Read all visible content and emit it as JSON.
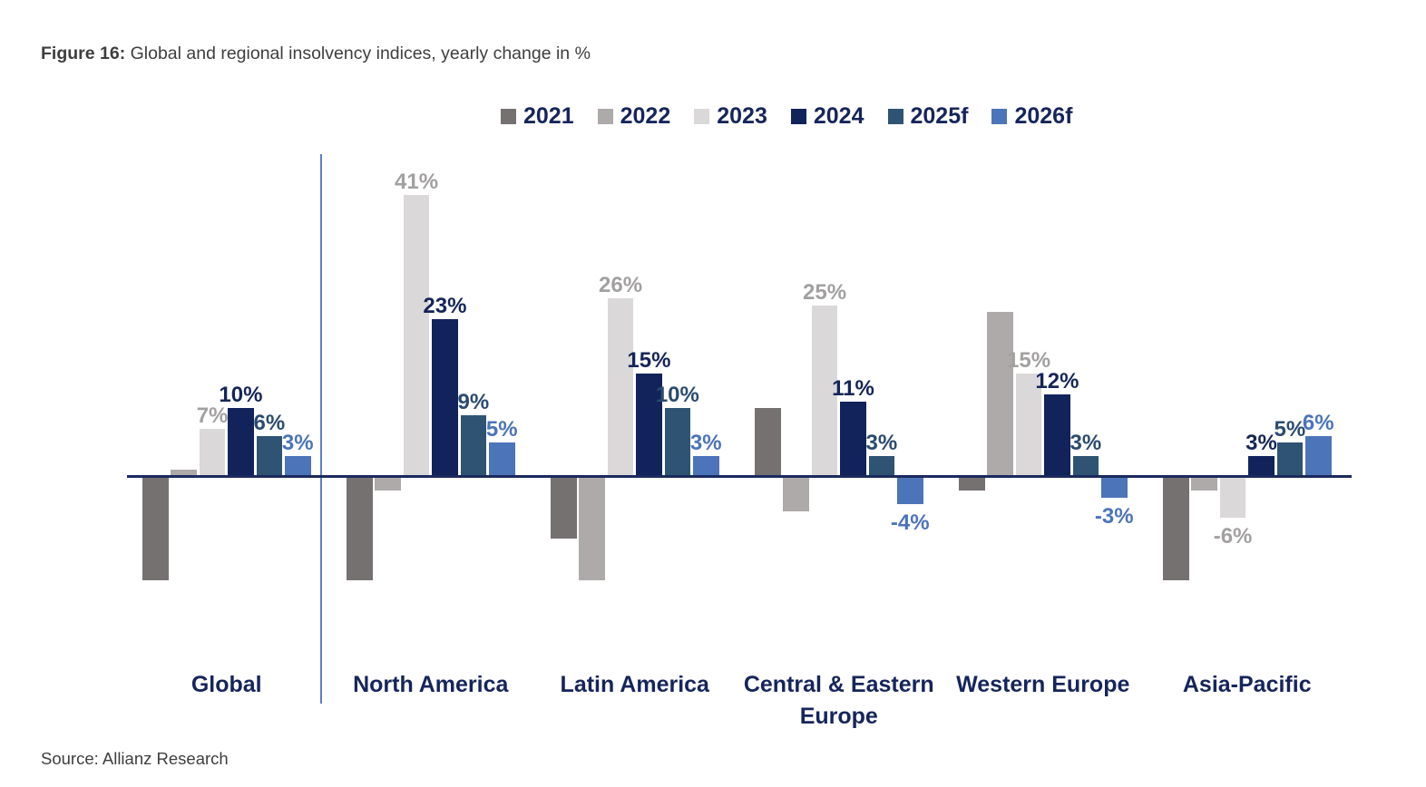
{
  "figure": {
    "label": "Figure 16:",
    "title": "Global and regional insolvency indices, yearly change in %"
  },
  "source": "Source: Allianz Research",
  "colors": {
    "axis_line": "#1B2A5E",
    "separator_line": "#5B7FC7",
    "heading_text": "#16255B",
    "muted_text": "#3E3E3E",
    "gray_label": "#A3A0A0"
  },
  "chart_data": {
    "type": "bar",
    "title": "Global and regional insolvency indices, yearly change in %",
    "unit": "%",
    "grid": false,
    "legend_position": "top",
    "ylim": [
      -20,
      45
    ],
    "categories": [
      "Global",
      "North America",
      "Latin America",
      "Central & Eastern Europe",
      "Western Europe",
      "Asia-Pacific"
    ],
    "series": [
      {
        "name": "2021",
        "color": "#767171",
        "values": [
          -15,
          -15,
          -9,
          10,
          -2,
          -15
        ],
        "labels": [
          "",
          "",
          "",
          "",
          "",
          ""
        ],
        "label_color": "#A3A0A0"
      },
      {
        "name": "2022",
        "color": "#AEAAAA",
        "values": [
          1,
          -2,
          -15,
          -5,
          24,
          -2
        ],
        "labels": [
          "",
          "",
          "",
          "",
          "",
          ""
        ],
        "label_color": "#A3A0A0"
      },
      {
        "name": "2023",
        "color": "#DAD8D8",
        "values": [
          7,
          41,
          26,
          25,
          15,
          -6
        ],
        "labels": [
          "7%",
          "41%",
          "26%",
          "25%",
          "15%",
          "-6%"
        ],
        "label_color": "#A3A0A0"
      },
      {
        "name": "2024",
        "color": "#12235B",
        "values": [
          10,
          23,
          15,
          11,
          12,
          3
        ],
        "labels": [
          "10%",
          "23%",
          "15%",
          "11%",
          "12%",
          "3%"
        ],
        "label_color": "#152558"
      },
      {
        "name": "2025f",
        "color": "#2F5373",
        "values": [
          6,
          9,
          10,
          3,
          3,
          5
        ],
        "labels": [
          "6%",
          "9%",
          "10%",
          "3%",
          "3%",
          "5%"
        ],
        "label_color": "#2B4B70"
      },
      {
        "name": "2026f",
        "color": "#4C74B8",
        "values": [
          3,
          5,
          3,
          -4,
          -3,
          6
        ],
        "labels": [
          "3%",
          "5%",
          "3%",
          "-4%",
          "-3%",
          "6%"
        ],
        "label_color": "#4C74B8"
      }
    ]
  }
}
